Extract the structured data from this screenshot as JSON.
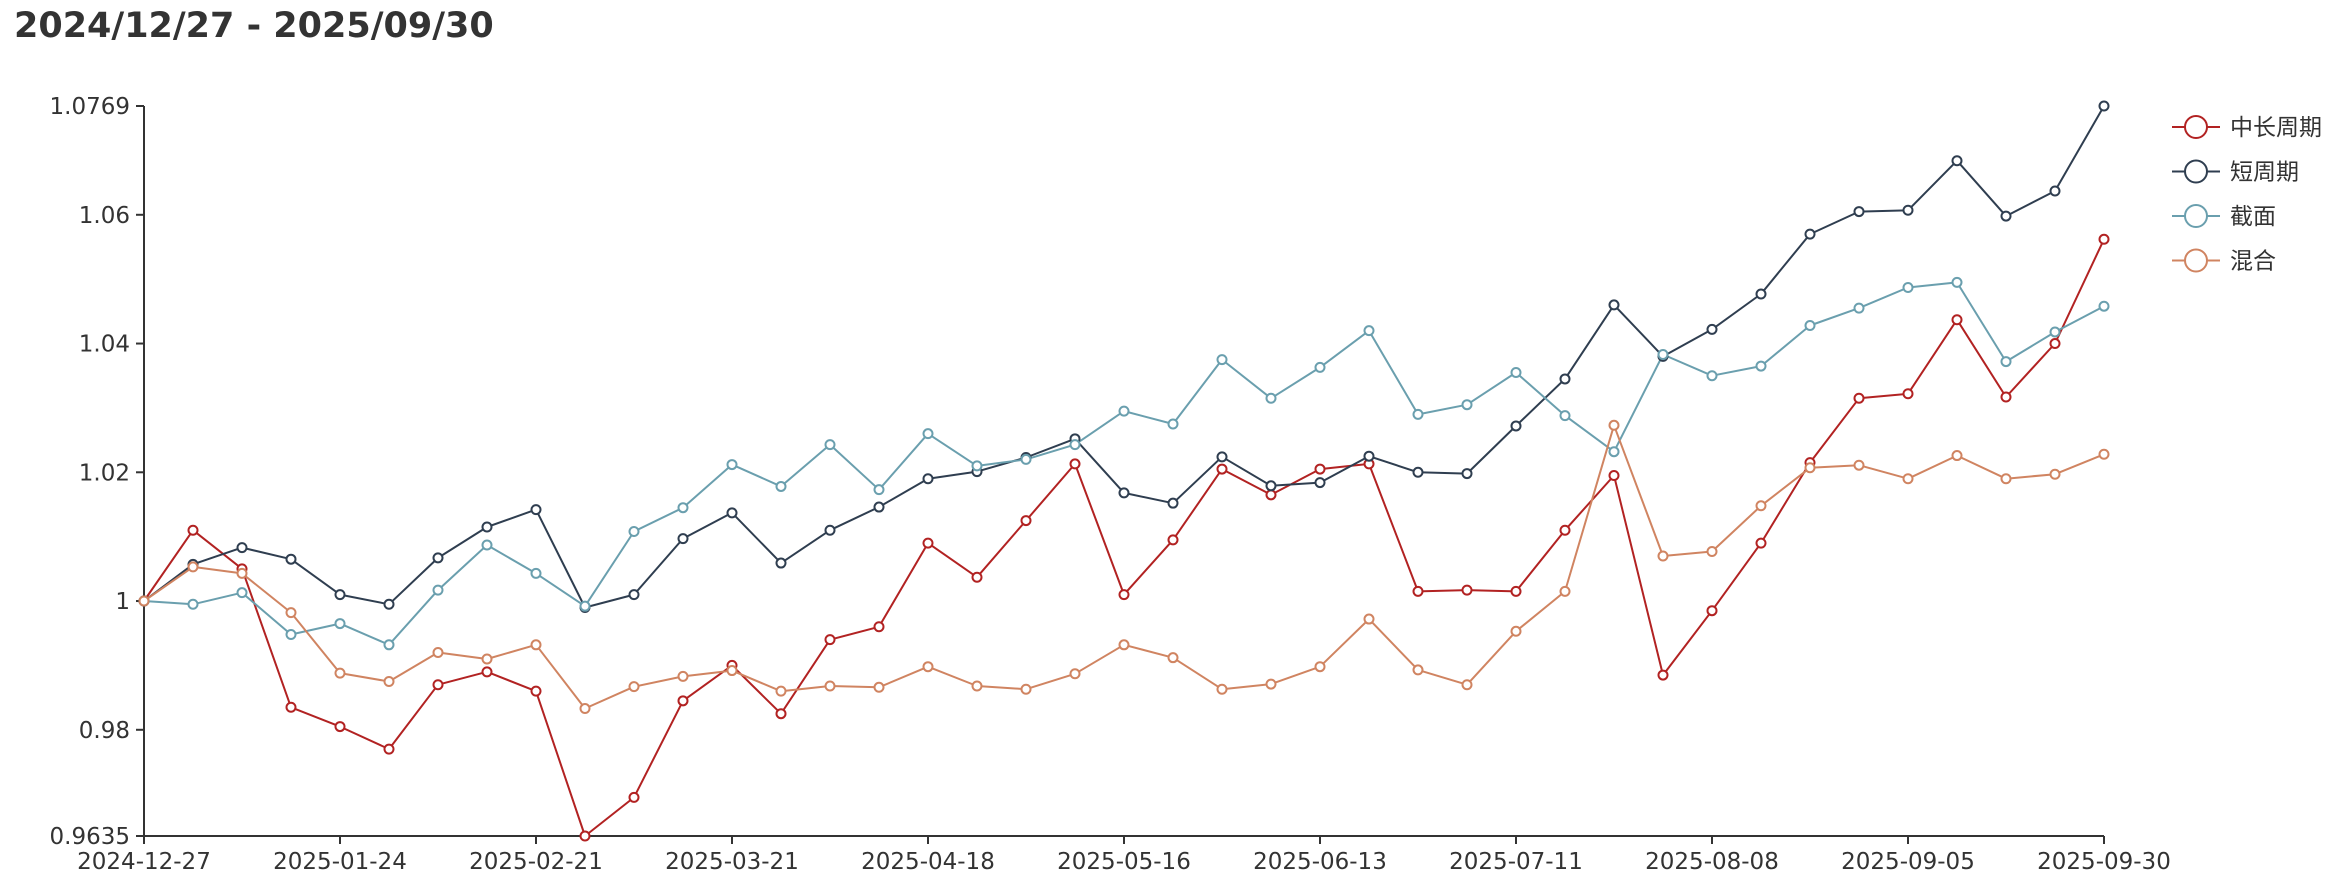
{
  "chart_data": {
    "type": "line",
    "title": "2024/12/27 - 2025/09/30",
    "xlabel": "",
    "ylabel": "",
    "ylim": [
      0.9635,
      1.0769
    ],
    "y_ticks": [
      "0.9635",
      "0.98",
      "1",
      "1.02",
      "1.04",
      "1.06",
      "1.0769"
    ],
    "y_tick_values": [
      0.9635,
      0.98,
      1.0,
      1.02,
      1.04,
      1.06,
      1.0769
    ],
    "x_tick_labels": [
      "2024-12-27",
      "2025-01-24",
      "2025-02-21",
      "2025-03-21",
      "2025-04-18",
      "2025-05-16",
      "2025-06-13",
      "2025-07-11",
      "2025-08-08",
      "2025-09-05",
      "2025-09-30"
    ],
    "grid": false,
    "legend_position": "top-right",
    "series": [
      {
        "name": "中长周期",
        "color": "#b22222",
        "values": [
          1.0,
          1.011,
          1.005,
          0.9835,
          0.9805,
          0.977,
          0.987,
          0.989,
          0.986,
          0.9635,
          0.9695,
          0.9845,
          0.99,
          0.9825,
          0.994,
          0.996,
          1.009,
          1.0037,
          1.0125,
          1.0213,
          1.001,
          1.0095,
          1.0205,
          1.0165,
          1.0205,
          1.0213,
          1.0015,
          1.0017,
          1.0015,
          1.011,
          1.0195,
          0.9885,
          0.9985,
          1.009,
          1.0215,
          1.0315,
          1.0322,
          1.0437,
          1.0317,
          1.04,
          1.0562
        ]
      },
      {
        "name": "短周期",
        "color": "#2f3e50",
        "values": [
          1.0,
          1.0057,
          1.0083,
          1.0065,
          1.001,
          0.9995,
          1.0067,
          1.0115,
          1.0142,
          0.999,
          1.001,
          1.0097,
          1.0137,
          1.0059,
          1.011,
          1.0146,
          1.019,
          1.0201,
          1.0223,
          1.0252,
          1.0168,
          1.0152,
          1.0224,
          1.0179,
          1.0184,
          1.0225,
          1.02,
          1.0198,
          1.0272,
          1.0345,
          1.046,
          1.038,
          1.0422,
          1.0477,
          1.057,
          1.0605,
          1.0607,
          1.0684,
          1.0598,
          1.0637,
          1.0769
        ]
      },
      {
        "name": "截面",
        "color": "#6a9fae",
        "values": [
          1.0,
          0.9995,
          1.0013,
          0.9948,
          0.9965,
          0.9932,
          1.0017,
          1.0087,
          1.0043,
          0.9992,
          1.0108,
          1.0145,
          1.0212,
          1.0178,
          1.0243,
          1.0173,
          1.026,
          1.021,
          1.022,
          1.0243,
          1.0295,
          1.0275,
          1.0375,
          1.0315,
          1.0363,
          1.042,
          1.029,
          1.0305,
          1.0355,
          1.0288,
          1.0232,
          1.0383,
          1.035,
          1.0365,
          1.0428,
          1.0455,
          1.0487,
          1.0495,
          1.0372,
          1.0418,
          1.0458
        ]
      },
      {
        "name": "混合",
        "color": "#d08461",
        "values": [
          1.0,
          1.0053,
          1.0043,
          0.9982,
          0.9888,
          0.9875,
          0.992,
          0.991,
          0.9932,
          0.9833,
          0.9867,
          0.9883,
          0.9892,
          0.986,
          0.9868,
          0.9866,
          0.9898,
          0.9868,
          0.9863,
          0.9887,
          0.9932,
          0.9912,
          0.9863,
          0.9871,
          0.9898,
          0.9972,
          0.9893,
          0.987,
          0.9953,
          1.0015,
          1.0273,
          1.007,
          1.0077,
          1.0148,
          1.0207,
          1.0211,
          1.019,
          1.0226,
          1.019,
          1.0197,
          1.0228
        ]
      }
    ]
  }
}
